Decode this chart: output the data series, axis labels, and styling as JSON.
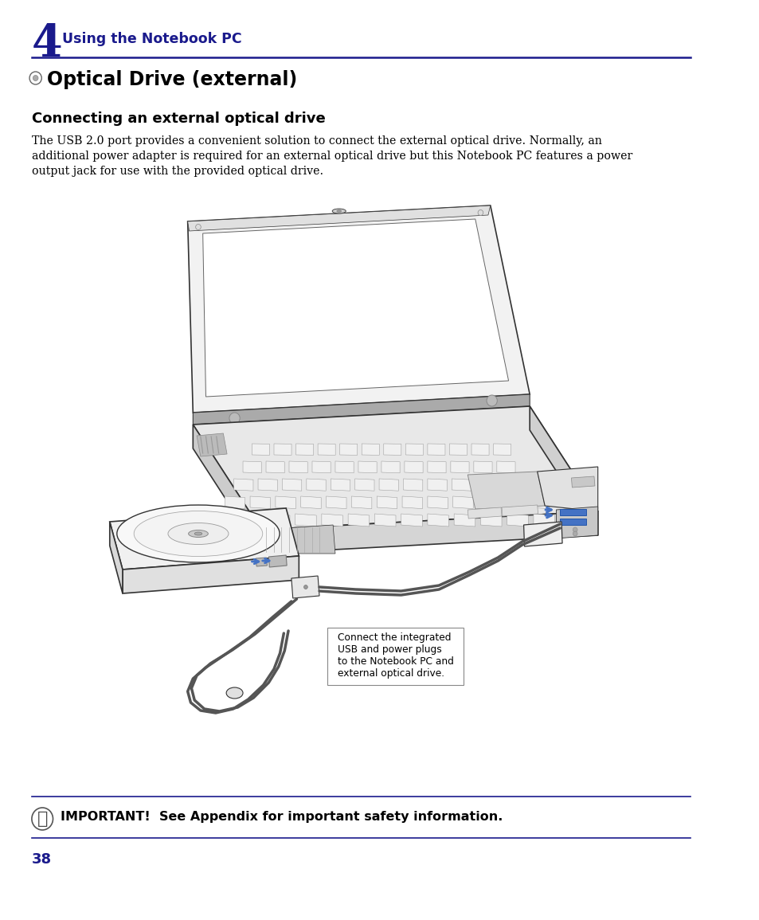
{
  "bg_color": "#ffffff",
  "dark_blue": "#1a1a8c",
  "black": "#000000",
  "page_number": "38",
  "chapter_num": "4",
  "chapter_title": "Using the Notebook PC",
  "section_title": "Optical Drive (external)",
  "subsection_title": "Connecting an external optical drive",
  "body_text_line1": "The USB 2.0 port provides a convenient solution to connect the external optical drive. Normally, an",
  "body_text_line2": "additional power adapter is required for an external optical drive but this Notebook PC features a power",
  "body_text_line3": "output jack for use with the provided optical drive.",
  "callout_text": "Connect the integrated\nUSB and power plugs\nto the Notebook PC and\nexternal optical drive.",
  "footer_text": "IMPORTANT!  See Appendix for important safety information.",
  "line_color": "#1a1a8c",
  "draw_color": "#333333",
  "blue_arrow": "#4472c4"
}
